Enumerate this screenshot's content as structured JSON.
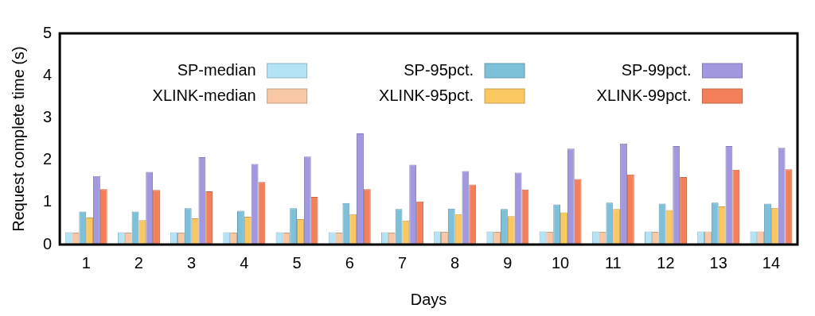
{
  "chart_data": {
    "type": "bar",
    "x_label": "Days",
    "y_label": "Request complete time (s)",
    "categories": [
      "1",
      "2",
      "3",
      "4",
      "5",
      "6",
      "7",
      "8",
      "9",
      "10",
      "11",
      "12",
      "13",
      "14"
    ],
    "series": [
      {
        "name": "SP-median",
        "color": "#b3e3f4",
        "values": [
          0.29,
          0.29,
          0.29,
          0.29,
          0.29,
          0.29,
          0.29,
          0.31,
          0.31,
          0.31,
          0.31,
          0.31,
          0.31,
          0.31
        ]
      },
      {
        "name": "XLINK-median",
        "color": "#f8c8a6",
        "values": [
          0.28,
          0.28,
          0.28,
          0.28,
          0.28,
          0.28,
          0.28,
          0.3,
          0.3,
          0.3,
          0.3,
          0.3,
          0.31,
          0.31
        ]
      },
      {
        "name": "SP-95pct.",
        "color": "#7cc0da",
        "values": [
          0.78,
          0.78,
          0.86,
          0.8,
          0.86,
          0.98,
          0.84,
          0.85,
          0.84,
          0.95,
          0.99,
          0.97,
          0.99,
          0.97
        ]
      },
      {
        "name": "XLINK-95pct.",
        "color": "#fbc760",
        "values": [
          0.64,
          0.58,
          0.62,
          0.66,
          0.6,
          0.72,
          0.57,
          0.72,
          0.67,
          0.76,
          0.84,
          0.82,
          0.9,
          0.87
        ]
      },
      {
        "name": "SP-99pct.",
        "color": "#a198e0",
        "values": [
          1.62,
          1.72,
          2.07,
          1.91,
          2.08,
          2.63,
          1.89,
          1.74,
          1.7,
          2.27,
          2.39,
          2.33,
          2.33,
          2.29
        ]
      },
      {
        "name": "XLINK-99pct.",
        "color": "#f4805a",
        "values": [
          1.31,
          1.29,
          1.26,
          1.48,
          1.13,
          1.31,
          1.02,
          1.42,
          1.3,
          1.55,
          1.66,
          1.6,
          1.77,
          1.78
        ]
      }
    ],
    "ylim": [
      0,
      5
    ],
    "yticks": [
      0,
      1,
      2,
      3,
      4,
      5
    ],
    "grid": false,
    "legend": "top"
  }
}
